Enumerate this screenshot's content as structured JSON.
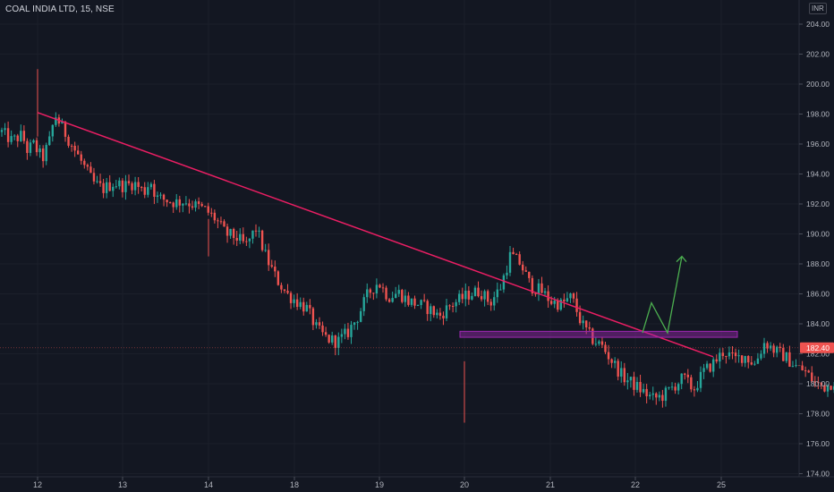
{
  "header": {
    "symbol_title": "COAL INDIA LTD, 15, NSE",
    "currency": "INR"
  },
  "colors": {
    "background": "#131722",
    "up": "#26a69a",
    "down": "#ef5350",
    "trendline": "#e91e63",
    "zone": "#9c27b0",
    "projection": "#4caf50",
    "price_badge": "#ef5350"
  },
  "chart_data": {
    "type": "candlestick",
    "y_axis": {
      "ticks": [
        "174.00",
        "176.00",
        "178.00",
        "180.00",
        "182.00",
        "184.00",
        "186.00",
        "188.00",
        "190.00",
        "192.00",
        "194.00",
        "196.00",
        "198.00",
        "200.00",
        "202.00",
        "204.00"
      ],
      "ylim": [
        174,
        205
      ],
      "position": "right"
    },
    "x_axis": {
      "ticks": [
        "12",
        "13",
        "14",
        "18",
        "19",
        "20",
        "21",
        "22",
        "25"
      ]
    },
    "last_price": "182.40",
    "candle_path": [
      [
        0,
        196.8
      ],
      [
        1.0,
        196.2
      ],
      [
        2.0,
        196.6
      ],
      [
        2.6,
        195.4
      ],
      [
        3.0,
        196.1
      ],
      [
        4.0,
        195.0
      ],
      [
        4.8,
        196.4
      ],
      [
        5.2,
        198.0
      ],
      [
        6.0,
        197.0
      ],
      [
        7.0,
        195.8
      ],
      [
        8.0,
        194.6
      ],
      [
        9.0,
        193.4
      ],
      [
        10.0,
        193.0
      ],
      [
        11.0,
        193.4
      ],
      [
        12.0,
        193.2
      ],
      [
        13.0,
        193.4
      ],
      [
        14.0,
        192.8
      ],
      [
        14.6,
        193.6
      ],
      [
        15.2,
        192.4
      ],
      [
        16.0,
        192.3
      ],
      [
        17.0,
        192.1
      ],
      [
        18.0,
        192.2
      ],
      [
        19.0,
        191.9
      ],
      [
        20.0,
        191.6
      ],
      [
        21.0,
        191.0
      ],
      [
        22.0,
        190.0
      ],
      [
        23.0,
        189.8
      ],
      [
        24.0,
        189.2
      ],
      [
        25.0,
        190.4
      ],
      [
        26.0,
        188.4
      ],
      [
        27.0,
        187.0
      ],
      [
        28.0,
        186.0
      ],
      [
        29.0,
        185.5
      ],
      [
        30.0,
        185.0
      ],
      [
        31.0,
        183.6
      ],
      [
        32.0,
        183.0
      ],
      [
        33.0,
        182.8
      ],
      [
        34.0,
        183.4
      ],
      [
        35.0,
        184.5
      ],
      [
        36.0,
        186.0
      ],
      [
        37.0,
        186.8
      ],
      [
        38.0,
        185.8
      ],
      [
        39.0,
        186.1
      ],
      [
        40.0,
        185.5
      ],
      [
        41.0,
        185.3
      ],
      [
        42.0,
        185.0
      ],
      [
        43.0,
        184.5
      ],
      [
        44.0,
        185.2
      ],
      [
        45.0,
        185.6
      ],
      [
        46.0,
        186.0
      ],
      [
        47.0,
        186.2
      ],
      [
        48.0,
        185.4
      ],
      [
        49.0,
        186.4
      ],
      [
        50.0,
        188.6
      ],
      [
        51.0,
        188.0
      ],
      [
        52.0,
        186.5
      ],
      [
        53.0,
        186.2
      ],
      [
        54.0,
        185.5
      ],
      [
        55.0,
        185.3
      ],
      [
        56.0,
        185.8
      ],
      [
        57.0,
        184.0
      ],
      [
        58.0,
        183.0
      ],
      [
        59.0,
        182.5
      ],
      [
        60.0,
        181.5
      ],
      [
        61.0,
        180.5
      ],
      [
        62.0,
        180.0
      ],
      [
        63.0,
        179.5
      ],
      [
        64.0,
        179.0
      ],
      [
        65.0,
        179.2
      ],
      [
        66.0,
        179.8
      ],
      [
        67.0,
        180.4
      ],
      [
        68.0,
        179.6
      ],
      [
        69.0,
        180.8
      ],
      [
        70.0,
        181.4
      ],
      [
        71.0,
        182.2
      ],
      [
        72.0,
        181.6
      ],
      [
        73.0,
        181.9
      ],
      [
        74.0,
        181.3
      ],
      [
        75.0,
        182.8
      ],
      [
        76.0,
        182.2
      ],
      [
        77.0,
        181.8
      ],
      [
        78.0,
        181.2
      ],
      [
        79.0,
        180.8
      ],
      [
        80.0,
        180.0
      ],
      [
        81.0,
        179.8
      ],
      [
        82.0,
        180.3
      ],
      [
        83.0,
        181.2
      ],
      [
        84.0,
        182.4
      ]
    ],
    "annotations": {
      "trendline": {
        "start_price": 198.1,
        "end_price": 181.8
      },
      "resistance_zone": {
        "low": 183.1,
        "high": 183.5
      },
      "projection_path": [
        183.4,
        185.4,
        183.4,
        188.5
      ]
    }
  }
}
